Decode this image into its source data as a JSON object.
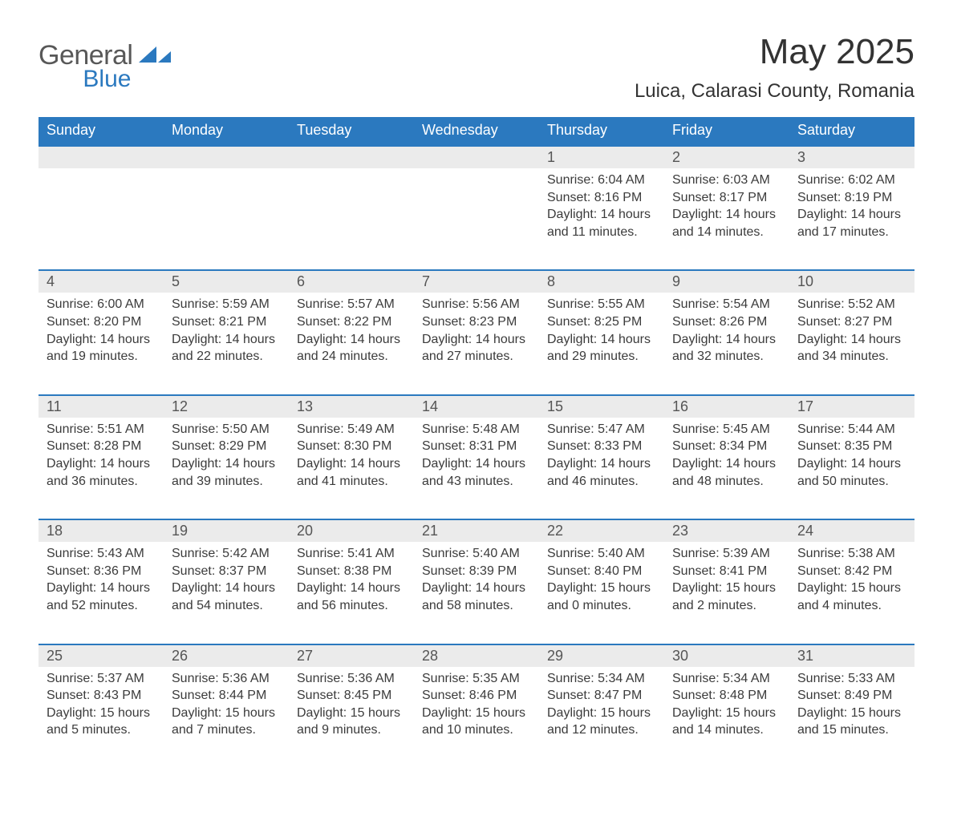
{
  "brand": {
    "text1": "General",
    "text2": "Blue",
    "accent_color": "#2b79bf"
  },
  "title": "May 2025",
  "subtitle": "Luica, Calarasi County, Romania",
  "colors": {
    "header_bg": "#2b79bf",
    "header_text": "#ffffff",
    "row_divider": "#2b79bf",
    "daynum_bg": "#ebebeb",
    "daynum_text": "#555555",
    "body_text": "#3b3b3b",
    "page_bg": "#ffffff"
  },
  "fontsize": {
    "title": 44,
    "subtitle": 24,
    "dow": 18,
    "daynum": 18,
    "body": 16
  },
  "days_of_week": [
    "Sunday",
    "Monday",
    "Tuesday",
    "Wednesday",
    "Thursday",
    "Friday",
    "Saturday"
  ],
  "weeks": [
    [
      null,
      null,
      null,
      null,
      {
        "n": "1",
        "sunrise": "6:04 AM",
        "sunset": "8:16 PM",
        "dayh": "14",
        "daym": "11"
      },
      {
        "n": "2",
        "sunrise": "6:03 AM",
        "sunset": "8:17 PM",
        "dayh": "14",
        "daym": "14"
      },
      {
        "n": "3",
        "sunrise": "6:02 AM",
        "sunset": "8:19 PM",
        "dayh": "14",
        "daym": "17"
      }
    ],
    [
      {
        "n": "4",
        "sunrise": "6:00 AM",
        "sunset": "8:20 PM",
        "dayh": "14",
        "daym": "19"
      },
      {
        "n": "5",
        "sunrise": "5:59 AM",
        "sunset": "8:21 PM",
        "dayh": "14",
        "daym": "22"
      },
      {
        "n": "6",
        "sunrise": "5:57 AM",
        "sunset": "8:22 PM",
        "dayh": "14",
        "daym": "24"
      },
      {
        "n": "7",
        "sunrise": "5:56 AM",
        "sunset": "8:23 PM",
        "dayh": "14",
        "daym": "27"
      },
      {
        "n": "8",
        "sunrise": "5:55 AM",
        "sunset": "8:25 PM",
        "dayh": "14",
        "daym": "29"
      },
      {
        "n": "9",
        "sunrise": "5:54 AM",
        "sunset": "8:26 PM",
        "dayh": "14",
        "daym": "32"
      },
      {
        "n": "10",
        "sunrise": "5:52 AM",
        "sunset": "8:27 PM",
        "dayh": "14",
        "daym": "34"
      }
    ],
    [
      {
        "n": "11",
        "sunrise": "5:51 AM",
        "sunset": "8:28 PM",
        "dayh": "14",
        "daym": "36"
      },
      {
        "n": "12",
        "sunrise": "5:50 AM",
        "sunset": "8:29 PM",
        "dayh": "14",
        "daym": "39"
      },
      {
        "n": "13",
        "sunrise": "5:49 AM",
        "sunset": "8:30 PM",
        "dayh": "14",
        "daym": "41"
      },
      {
        "n": "14",
        "sunrise": "5:48 AM",
        "sunset": "8:31 PM",
        "dayh": "14",
        "daym": "43"
      },
      {
        "n": "15",
        "sunrise": "5:47 AM",
        "sunset": "8:33 PM",
        "dayh": "14",
        "daym": "46"
      },
      {
        "n": "16",
        "sunrise": "5:45 AM",
        "sunset": "8:34 PM",
        "dayh": "14",
        "daym": "48"
      },
      {
        "n": "17",
        "sunrise": "5:44 AM",
        "sunset": "8:35 PM",
        "dayh": "14",
        "daym": "50"
      }
    ],
    [
      {
        "n": "18",
        "sunrise": "5:43 AM",
        "sunset": "8:36 PM",
        "dayh": "14",
        "daym": "52"
      },
      {
        "n": "19",
        "sunrise": "5:42 AM",
        "sunset": "8:37 PM",
        "dayh": "14",
        "daym": "54"
      },
      {
        "n": "20",
        "sunrise": "5:41 AM",
        "sunset": "8:38 PM",
        "dayh": "14",
        "daym": "56"
      },
      {
        "n": "21",
        "sunrise": "5:40 AM",
        "sunset": "8:39 PM",
        "dayh": "14",
        "daym": "58"
      },
      {
        "n": "22",
        "sunrise": "5:40 AM",
        "sunset": "8:40 PM",
        "dayh": "15",
        "daym": "0"
      },
      {
        "n": "23",
        "sunrise": "5:39 AM",
        "sunset": "8:41 PM",
        "dayh": "15",
        "daym": "2"
      },
      {
        "n": "24",
        "sunrise": "5:38 AM",
        "sunset": "8:42 PM",
        "dayh": "15",
        "daym": "4"
      }
    ],
    [
      {
        "n": "25",
        "sunrise": "5:37 AM",
        "sunset": "8:43 PM",
        "dayh": "15",
        "daym": "5"
      },
      {
        "n": "26",
        "sunrise": "5:36 AM",
        "sunset": "8:44 PM",
        "dayh": "15",
        "daym": "7"
      },
      {
        "n": "27",
        "sunrise": "5:36 AM",
        "sunset": "8:45 PM",
        "dayh": "15",
        "daym": "9"
      },
      {
        "n": "28",
        "sunrise": "5:35 AM",
        "sunset": "8:46 PM",
        "dayh": "15",
        "daym": "10"
      },
      {
        "n": "29",
        "sunrise": "5:34 AM",
        "sunset": "8:47 PM",
        "dayh": "15",
        "daym": "12"
      },
      {
        "n": "30",
        "sunrise": "5:34 AM",
        "sunset": "8:48 PM",
        "dayh": "15",
        "daym": "14"
      },
      {
        "n": "31",
        "sunrise": "5:33 AM",
        "sunset": "8:49 PM",
        "dayh": "15",
        "daym": "15"
      }
    ]
  ],
  "labels": {
    "sunrise_prefix": "Sunrise: ",
    "sunset_prefix": "Sunset: ",
    "daylight_prefix": "Daylight: ",
    "hours_word": " hours",
    "and_word": "and ",
    "minutes_word": " minutes."
  }
}
